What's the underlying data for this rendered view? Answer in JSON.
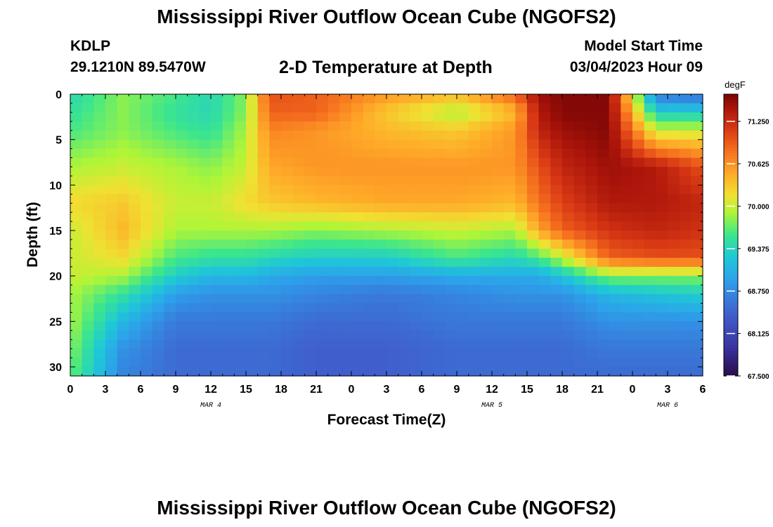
{
  "header": {
    "title": "Mississippi River Outflow Ocean Cube (NGOFS2)",
    "station": "KDLP",
    "coords": "29.1210N  89.5470W",
    "subtitle": "2-D Temperature at Depth",
    "model_start_label": "Model Start Time",
    "model_start_value": "03/04/2023 Hour 09"
  },
  "footer": {
    "title": "Mississippi River Outflow Ocean Cube (NGOFS2)"
  },
  "chart_data": {
    "type": "heatmap",
    "title": "2-D Temperature at Depth",
    "xlabel": "Forecast Time(Z)",
    "ylabel": "Depth (ft)",
    "x_range_hours": [
      0,
      54
    ],
    "x_tick_step_hours": 3,
    "x_tick_labels": [
      "0",
      "3",
      "6",
      "9",
      "12",
      "15",
      "18",
      "21",
      "0",
      "3",
      "6",
      "9",
      "12",
      "15",
      "18",
      "21",
      "0",
      "3",
      "6"
    ],
    "date_labels": [
      {
        "label": "MAR 4",
        "hour": 12
      },
      {
        "label": "MAR 5",
        "hour": 36
      },
      {
        "label": "MAR 6",
        "hour": 51
      }
    ],
    "y_range_ft": [
      0,
      31
    ],
    "y_ticks": [
      0,
      5,
      10,
      15,
      20,
      25,
      30
    ],
    "y_tick_labels": [
      "0",
      "5",
      "10",
      "15",
      "20",
      "25",
      "30"
    ],
    "grid_cols": 54,
    "grid_rows": 31,
    "colorbar": {
      "unit": "degF",
      "min": 67.5,
      "max": 71.65,
      "tick_values": [
        71.25,
        70.625,
        70.0,
        69.375,
        68.75,
        68.125,
        67.5
      ],
      "tick_labels": [
        "71.250",
        "70.625",
        "70.000",
        "69.375",
        "68.750",
        "68.125",
        "67.500"
      ]
    },
    "field_description_keyframes": {
      "hours": [
        0,
        4.5,
        9,
        12,
        15,
        17,
        21,
        27,
        33,
        38,
        40,
        42,
        46,
        50,
        54
      ],
      "depths_ft": [
        0,
        2,
        4,
        8,
        12,
        15,
        18,
        20,
        22,
        25,
        28,
        31
      ],
      "temp_degF": [
        [
          69.4,
          69.8,
          69.6,
          69.4,
          69.8,
          71.0,
          70.9,
          70.6,
          70.4,
          70.9,
          71.5,
          71.6,
          71.6,
          68.6,
          68.5
        ],
        [
          69.5,
          69.8,
          69.5,
          69.4,
          69.8,
          70.9,
          70.9,
          70.3,
          69.9,
          70.4,
          71.4,
          71.6,
          71.6,
          69.3,
          69.3
        ],
        [
          69.6,
          69.8,
          69.6,
          69.5,
          69.9,
          70.7,
          70.6,
          70.4,
          70.3,
          70.6,
          71.3,
          71.5,
          71.6,
          70.0,
          70.0
        ],
        [
          69.9,
          70.0,
          69.9,
          69.8,
          70.0,
          70.5,
          70.6,
          70.6,
          70.6,
          70.6,
          71.0,
          71.3,
          71.5,
          71.4,
          71.0
        ],
        [
          70.2,
          70.3,
          70.0,
          70.0,
          70.2,
          70.3,
          70.4,
          70.5,
          70.5,
          70.4,
          70.8,
          71.1,
          71.4,
          71.4,
          71.3
        ],
        [
          70.0,
          70.4,
          69.9,
          69.9,
          69.9,
          69.9,
          69.8,
          69.9,
          70.0,
          69.9,
          70.5,
          70.9,
          71.2,
          71.3,
          71.2
        ],
        [
          70.0,
          70.2,
          69.6,
          69.5,
          69.5,
          69.4,
          69.3,
          69.3,
          69.6,
          69.4,
          69.6,
          70.0,
          70.9,
          71.0,
          71.0
        ],
        [
          70.0,
          69.9,
          69.3,
          69.1,
          69.1,
          69.0,
          68.9,
          68.9,
          69.0,
          69.0,
          69.0,
          69.2,
          69.8,
          69.8,
          69.8
        ],
        [
          69.9,
          69.5,
          68.9,
          68.8,
          68.8,
          68.8,
          68.7,
          68.6,
          68.7,
          68.8,
          68.8,
          68.8,
          69.1,
          69.2,
          69.3
        ],
        [
          69.9,
          69.1,
          68.6,
          68.6,
          68.6,
          68.6,
          68.5,
          68.5,
          68.6,
          68.6,
          68.6,
          68.6,
          68.8,
          68.8,
          68.8
        ],
        [
          69.8,
          68.8,
          68.5,
          68.5,
          68.5,
          68.5,
          68.4,
          68.4,
          68.5,
          68.5,
          68.5,
          68.5,
          68.6,
          68.6,
          68.6
        ],
        [
          69.7,
          68.7,
          68.5,
          68.5,
          68.5,
          68.5,
          68.4,
          68.4,
          68.5,
          68.5,
          68.5,
          68.5,
          68.5,
          68.5,
          68.5
        ]
      ]
    }
  }
}
